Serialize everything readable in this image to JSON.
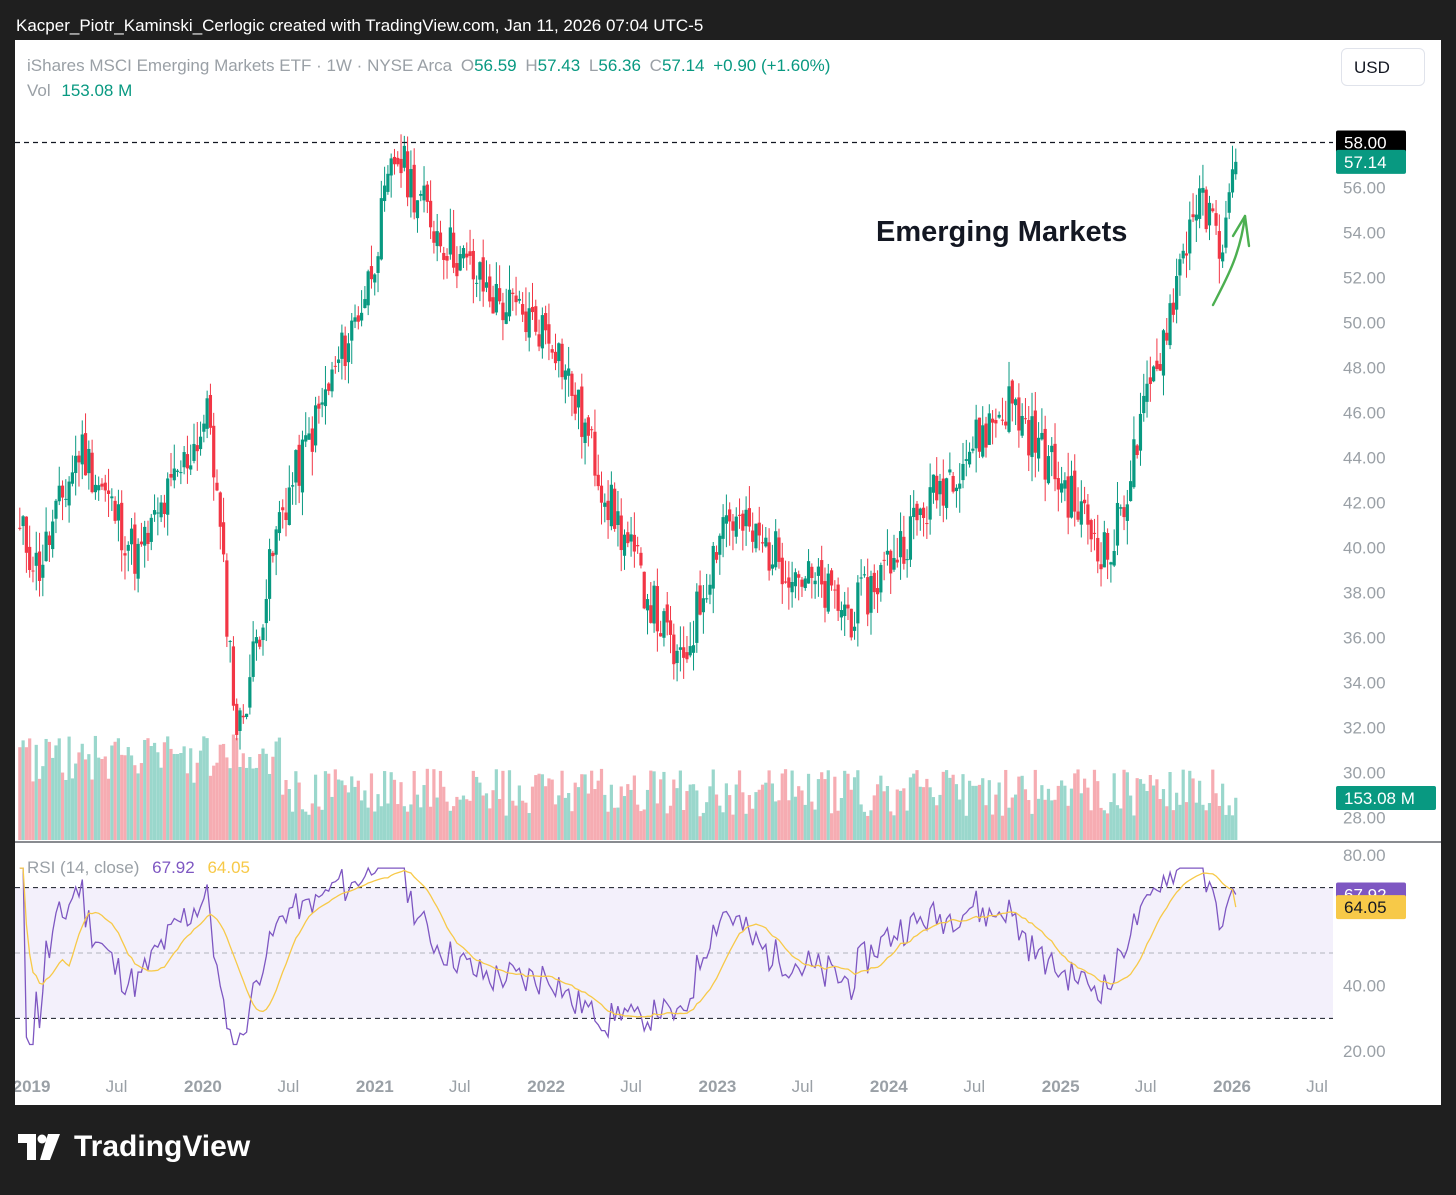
{
  "header": {
    "caption": "Kacper_Piotr_Kaminski_Cerlogic created with TradingView.com, Jan 11, 2026 07:04 UTC-5"
  },
  "legend": {
    "symbol": "iShares MSCI Emerging Markets ETF · 1W · NYSE Arca",
    "o_label": "O",
    "o_value": "56.59",
    "h_label": "H",
    "h_value": "57.43",
    "l_label": "L",
    "l_value": "56.36",
    "c_label": "C",
    "c_value": "57.14",
    "change": "+0.90 (+1.60%)",
    "vol_label": "Vol",
    "vol_value": "153.08 M"
  },
  "currency_button": "USD",
  "annotation": "Emerging Markets",
  "price_axis": {
    "ticks": [
      "56.00",
      "54.00",
      "52.00",
      "50.00",
      "48.00",
      "46.00",
      "44.00",
      "42.00",
      "40.00",
      "38.00",
      "36.00",
      "34.00",
      "32.00",
      "30.00",
      "28.00"
    ],
    "tick_values": [
      56,
      54,
      52,
      50,
      48,
      46,
      44,
      42,
      40,
      38,
      36,
      34,
      32,
      30,
      28
    ],
    "tags": {
      "high_line": "58.00",
      "last_price": "57.14",
      "volume": "153.08 M"
    }
  },
  "rsi": {
    "title": "RSI (14, close)",
    "rsi_value": "67.92",
    "ma_value": "64.05",
    "ticks": [
      "80.00",
      "40.00",
      "20.00"
    ],
    "tick_values": [
      80,
      40,
      20
    ],
    "bands": [
      70,
      50,
      30
    ]
  },
  "time_axis": {
    "labels": [
      {
        "text": "2019",
        "bold": true
      },
      {
        "text": "Jul",
        "bold": false
      },
      {
        "text": "2020",
        "bold": true
      },
      {
        "text": "Jul",
        "bold": false
      },
      {
        "text": "2021",
        "bold": true
      },
      {
        "text": "Jul",
        "bold": false
      },
      {
        "text": "2022",
        "bold": true
      },
      {
        "text": "Jul",
        "bold": false
      },
      {
        "text": "2023",
        "bold": true
      },
      {
        "text": "Jul",
        "bold": false
      },
      {
        "text": "2024",
        "bold": true
      },
      {
        "text": "Jul",
        "bold": false
      },
      {
        "text": "2025",
        "bold": true
      },
      {
        "text": "Jul",
        "bold": false
      },
      {
        "text": "2026",
        "bold": true
      },
      {
        "text": "Jul",
        "bold": false
      }
    ]
  },
  "brand": "TradingView",
  "colors": {
    "up": "#089981",
    "down": "#f23645",
    "rsi": "#7e57c2",
    "rsi_ma": "#f7c948",
    "band_fill": "#f3f0fb",
    "arrow": "#4caf50"
  },
  "chart_data": {
    "type": "candlestick",
    "title": "iShares MSCI Emerging Markets ETF · 1W · NYSE Arca",
    "interval": "1W",
    "x_range": [
      "2018-12",
      "2026-01"
    ],
    "y_range": [
      27,
      59
    ],
    "key_points": [
      {
        "date": "2018-12",
        "close": 40.5
      },
      {
        "date": "2019-01",
        "close": 39.0
      },
      {
        "date": "2019-04",
        "close": 44.5
      },
      {
        "date": "2019-08",
        "close": 39.5
      },
      {
        "date": "2020-01",
        "close": 46.0
      },
      {
        "date": "2020-03",
        "close": 31.5
      },
      {
        "date": "2020-06",
        "close": 41.5
      },
      {
        "date": "2020-12",
        "close": 51.5
      },
      {
        "date": "2021-02",
        "close": 57.5
      },
      {
        "date": "2021-05",
        "close": 54.0
      },
      {
        "date": "2021-09",
        "close": 51.0
      },
      {
        "date": "2022-01",
        "close": 49.5
      },
      {
        "date": "2022-05",
        "close": 42.0
      },
      {
        "date": "2022-10",
        "close": 34.5
      },
      {
        "date": "2023-01",
        "close": 41.5
      },
      {
        "date": "2023-10",
        "close": 37.0
      },
      {
        "date": "2024-05",
        "close": 43.5
      },
      {
        "date": "2024-09",
        "close": 46.5
      },
      {
        "date": "2025-04",
        "close": 39.5
      },
      {
        "date": "2025-08",
        "close": 50.0
      },
      {
        "date": "2025-10",
        "close": 55.5
      },
      {
        "date": "2025-12",
        "close": 53.5
      },
      {
        "date": "2026-01",
        "close": 57.14
      }
    ],
    "last": {
      "open": 56.59,
      "high": 57.43,
      "low": 56.36,
      "close": 57.14,
      "change": 0.9,
      "change_pct": 1.6
    },
    "volume_last_millions": 153.08,
    "rsi_last": 67.92,
    "rsi_ma_last": 64.05
  }
}
